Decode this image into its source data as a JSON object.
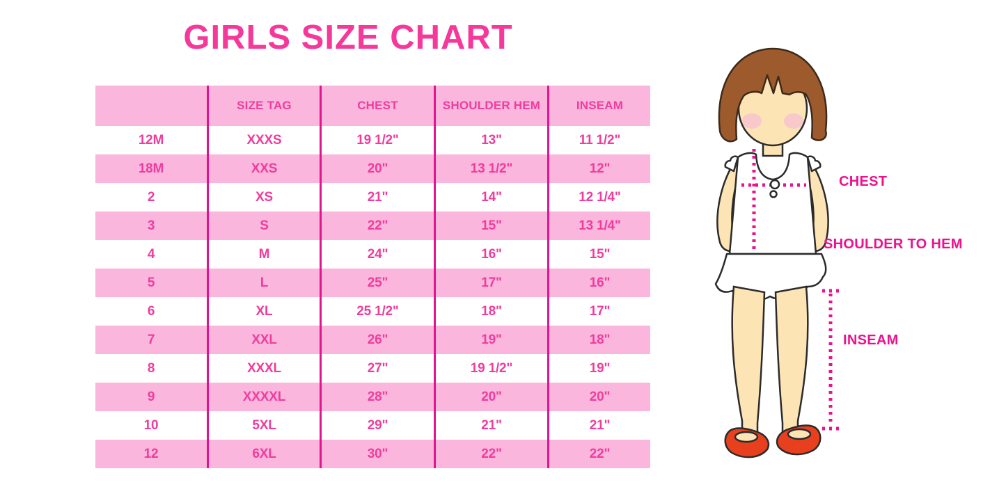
{
  "title": "GIRLS SIZE CHART",
  "chart_data": {
    "type": "table",
    "title": "GIRLS SIZE CHART",
    "columns": [
      "",
      "SIZE TAG",
      "CHEST",
      "SHOULDER HEM",
      "INSEAM"
    ],
    "rows": [
      [
        "12M",
        "XXXS",
        "19 1/2\"",
        "13\"",
        "11 1/2\""
      ],
      [
        "18M",
        "XXS",
        "20\"",
        "13 1/2\"",
        "12\""
      ],
      [
        "2",
        "XS",
        "21\"",
        "14\"",
        "12 1/4\""
      ],
      [
        "3",
        "S",
        "22\"",
        "15\"",
        "13 1/4\""
      ],
      [
        "4",
        "M",
        "24\"",
        "16\"",
        "15\""
      ],
      [
        "5",
        "L",
        "25\"",
        "17\"",
        "16\""
      ],
      [
        "6",
        "XL",
        "25 1/2\"",
        "18\"",
        "17\""
      ],
      [
        "7",
        "XXL",
        "26\"",
        "19\"",
        "18\""
      ],
      [
        "8",
        "XXXL",
        "27\"",
        "19 1/2\"",
        "19\""
      ],
      [
        "9",
        "XXXXL",
        "28\"",
        "20\"",
        "20\""
      ],
      [
        "10",
        "5XL",
        "29\"",
        "21\"",
        "21\""
      ],
      [
        "12",
        "6XL",
        "30\"",
        "22\"",
        "22\""
      ]
    ],
    "row_striping": [
      "white",
      "pink",
      "white",
      "pink",
      "white",
      "pink",
      "white",
      "pink",
      "white",
      "pink",
      "white",
      "pink"
    ],
    "layout_hints": {
      "header_fill": "pink",
      "grid": "vertical-lines-only"
    }
  },
  "diagram": {
    "chest_label": "CHEST",
    "shoulder_to_hem_label": "SHOULDER TO HEM",
    "inseam_label": "INSEAM",
    "figure": "girl-illustration"
  },
  "colors": {
    "title_pink": "#F4399B",
    "pink_light": "#FBB6DD",
    "magenta_line": "#E0148C",
    "text_pink": "#F03C9E",
    "label_magenta": "#EC118C",
    "hair_brown": "#9C5A2D",
    "hair_outline": "#3D2A1A",
    "skin": "#FCE4B5",
    "blush": "#F7C3CF",
    "shoe_red": "#E8401F",
    "outline": "#2B2B2B"
  }
}
